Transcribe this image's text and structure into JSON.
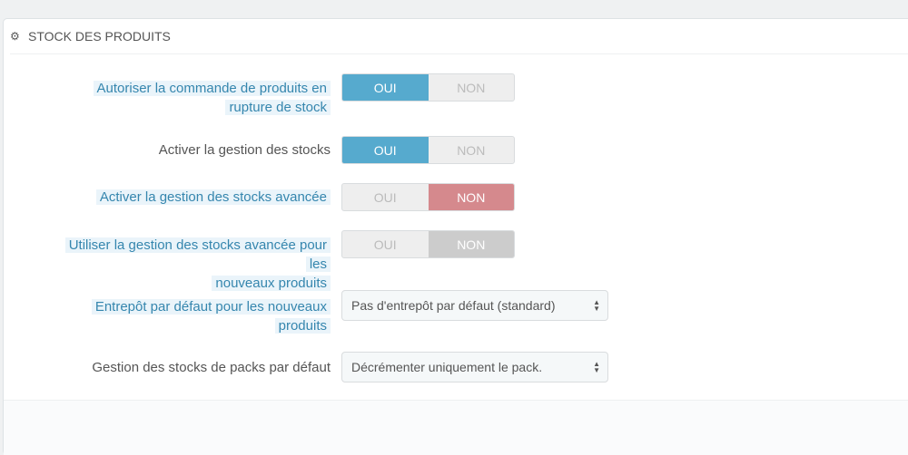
{
  "panel": {
    "title": "Stock des produits",
    "icon": "cogs-icon"
  },
  "rows": [
    {
      "label_l1": "Autoriser la commande de produits en",
      "label_l2": "rupture de stock",
      "yes": "OUI",
      "no": "NON",
      "value": "OUI"
    },
    {
      "label": "Activer la gestion des stocks",
      "yes": "OUI",
      "no": "NON",
      "value": "OUI"
    },
    {
      "label": "Activer la gestion des stocks avancée",
      "yes": "OUI",
      "no": "NON",
      "value": "NON"
    },
    {
      "label_l1": "Utiliser la gestion des stocks avancée pour les",
      "label_l2": "nouveaux produits",
      "yes": "OUI",
      "no": "NON",
      "value": "NON",
      "disabled": true
    },
    {
      "label_l1": "Entrepôt par défaut pour les nouveaux",
      "label_l2": "produits",
      "selected": "Pas d'entrepôt par défaut (standard)"
    },
    {
      "label": "Gestion des stocks de packs par défaut",
      "selected": "Décrémenter uniquement le pack."
    }
  ],
  "colors": {
    "on": "#56aace",
    "off_red": "#d5898d",
    "disabled": "#cccccc",
    "hint_text": "#3586ae"
  }
}
